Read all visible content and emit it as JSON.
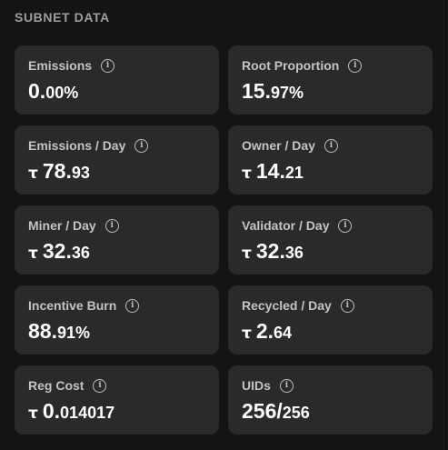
{
  "section_title": "SUBNET DATA",
  "info_glyph": "i",
  "tao_symbol": "τ",
  "cards": [
    {
      "label": "Emissions",
      "int": "0.",
      "frac": "00%",
      "tao": ""
    },
    {
      "label": "Root Proportion",
      "int": "15.",
      "frac": "97%",
      "tao": ""
    },
    {
      "label": "Emissions / Day",
      "int": "78.",
      "frac": "93",
      "tao": "τ"
    },
    {
      "label": "Owner / Day",
      "int": "14.",
      "frac": "21",
      "tao": "τ"
    },
    {
      "label": "Miner / Day",
      "int": "32.",
      "frac": "36",
      "tao": "τ"
    },
    {
      "label": "Validator / Day",
      "int": "32.",
      "frac": "36",
      "tao": "τ"
    },
    {
      "label": "Incentive Burn",
      "int": "88.",
      "frac": "91%",
      "tao": ""
    },
    {
      "label": "Recycled / Day",
      "int": "2.",
      "frac": "64",
      "tao": "τ"
    },
    {
      "label": "Reg Cost",
      "int": "0.",
      "frac": "014017",
      "tao": "τ"
    },
    {
      "label": "UIDs",
      "int": "256/",
      "frac": "256",
      "tao": ""
    }
  ],
  "colors": {
    "background": "#141414",
    "card": "#2a2a2a",
    "label": "#c4c4c4",
    "value": "#ffffff",
    "section_title": "#9e9e9e"
  },
  "icons": {
    "info": "info-circle-icon",
    "currency": "tao-symbol"
  }
}
